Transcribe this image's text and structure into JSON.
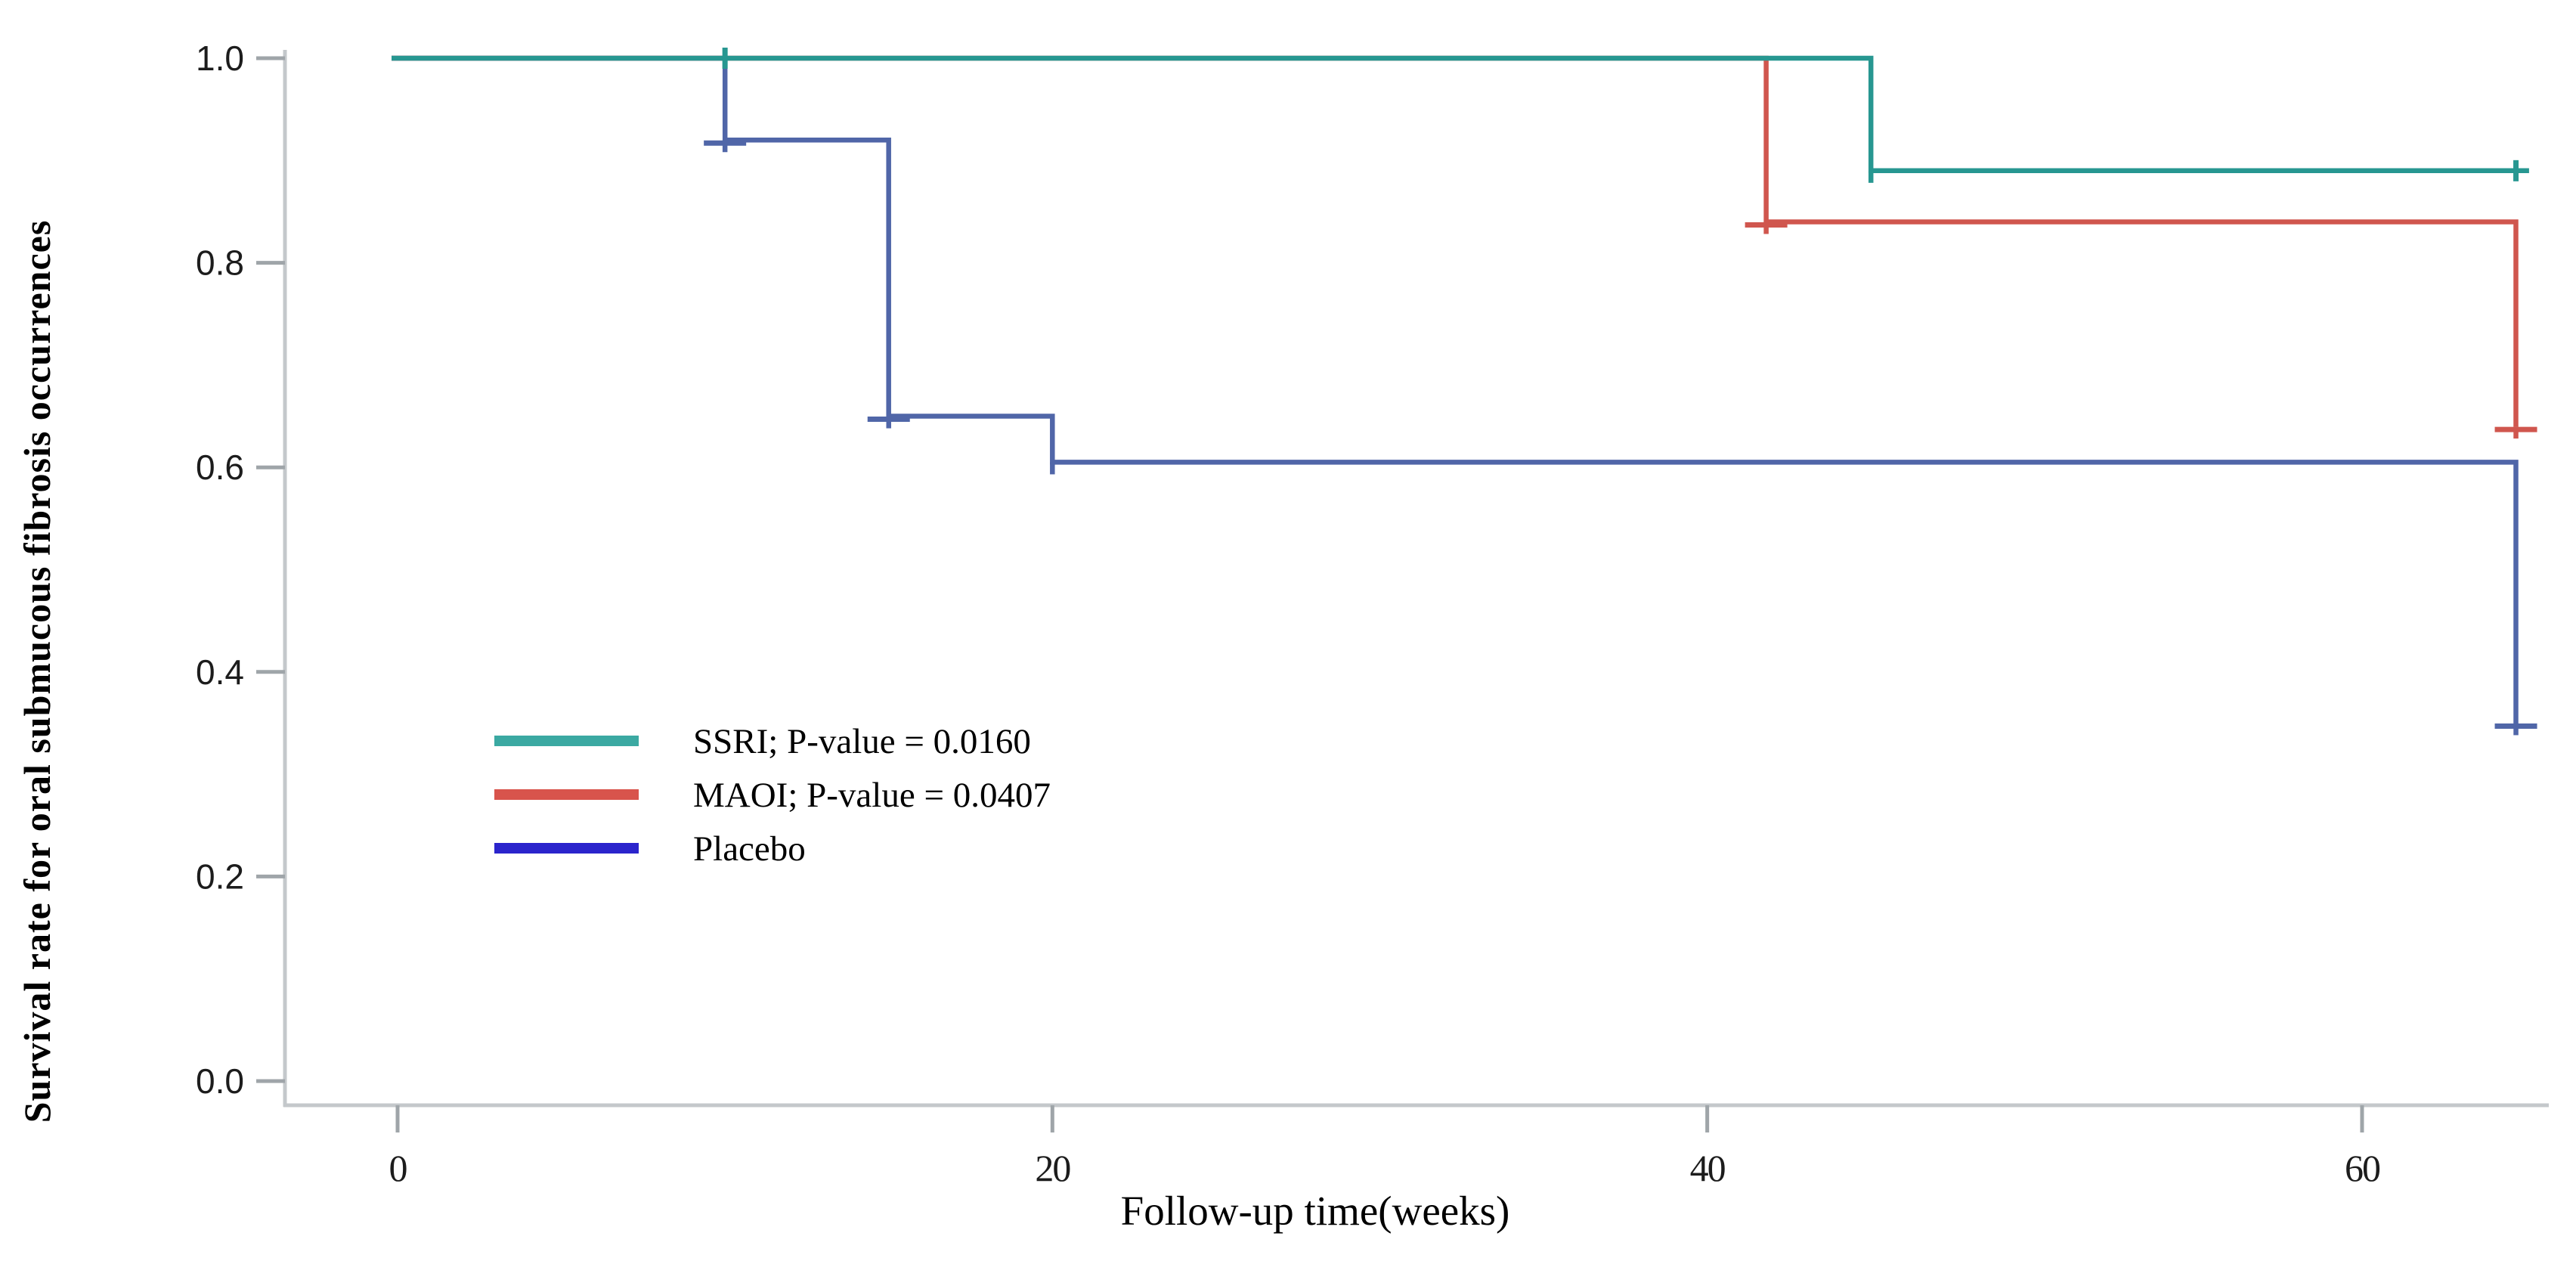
{
  "figure": {
    "y_axis_title": "Survival rate for oral submucous  fibrosis occurrences",
    "x_axis_title": "Follow-up time(weeks)"
  },
  "legend": {
    "entries": [
      {
        "id": "ssri",
        "label": "SSRI; P-value = 0.0160",
        "swatch_color": "#3BA9A2"
      },
      {
        "id": "maoi",
        "label": "MAOI; P-value  = 0.0407",
        "swatch_color": "#D8544C"
      },
      {
        "id": "placebo",
        "label": "Placebo",
        "swatch_color": "#2B24CC"
      }
    ]
  },
  "chart_data": {
    "type": "line",
    "subtype": "kaplan-meier-step",
    "title": "",
    "xlabel": "Follow-up time(weeks)",
    "ylabel": "Survival rate for oral submucous  fibrosis occurrences",
    "xlim": [
      -2.5,
      66.5
    ],
    "ylim": [
      0.0,
      1.02
    ],
    "grid": false,
    "legend_position": "inside-left-middle",
    "x_ticks": [
      {
        "v": 0,
        "label": "0"
      },
      {
        "v": 20,
        "label": "20"
      },
      {
        "v": 40,
        "label": "40"
      },
      {
        "v": 60,
        "label": "60"
      }
    ],
    "y_ticks": [
      {
        "v": 1.0,
        "label": "1.0"
      },
      {
        "v": 0.8,
        "label": "0.8"
      },
      {
        "v": 0.6,
        "label": "0.6"
      },
      {
        "v": 0.4,
        "label": "0.4"
      },
      {
        "v": 0.2,
        "label": "0.2"
      },
      {
        "v": 0.0,
        "label": "0.0"
      }
    ],
    "series": [
      {
        "name": "SSRI",
        "p_value": "0.0160",
        "color": "#279791",
        "steps": [
          [
            0,
            1.0
          ],
          [
            45,
            1.0
          ],
          [
            45,
            0.89
          ],
          [
            65.1,
            0.89
          ]
        ],
        "censor_marks": [
          {
            "week": 10,
            "surv": 1.0,
            "orient": "vertical"
          },
          {
            "week": 64.7,
            "surv": 0.89,
            "orient": "vertical"
          }
        ]
      },
      {
        "name": "MAOI",
        "p_value": "0.0407",
        "color": "#D0564E",
        "steps": [
          [
            0,
            1.0
          ],
          [
            41.8,
            1.0
          ],
          [
            41.8,
            0.84
          ],
          [
            64.7,
            0.84
          ],
          [
            64.7,
            0.64
          ]
        ],
        "censor_marks": [
          {
            "week": 41.8,
            "surv": 0.84,
            "orient": "horizontal"
          },
          {
            "week": 64.7,
            "surv": 0.64,
            "orient": "horizontal"
          }
        ]
      },
      {
        "name": "Placebo",
        "p_value": "",
        "color": "#5066A8",
        "steps": [
          [
            0,
            1.0
          ],
          [
            10,
            1.0
          ],
          [
            10,
            0.92
          ],
          [
            15,
            0.92
          ],
          [
            15,
            0.65
          ],
          [
            20,
            0.65
          ],
          [
            20,
            0.605
          ],
          [
            64.7,
            0.605
          ],
          [
            64.7,
            0.35
          ]
        ],
        "censor_marks": [
          {
            "week": 10,
            "surv": 0.92,
            "orient": "horizontal"
          },
          {
            "week": 15,
            "surv": 0.65,
            "orient": "horizontal"
          },
          {
            "week": 64.7,
            "surv": 0.35,
            "orient": "horizontal"
          }
        ]
      }
    ],
    "colors": {
      "axis": "#C4C8CB",
      "tick": "#9FA5A9",
      "text": "#000000"
    }
  }
}
